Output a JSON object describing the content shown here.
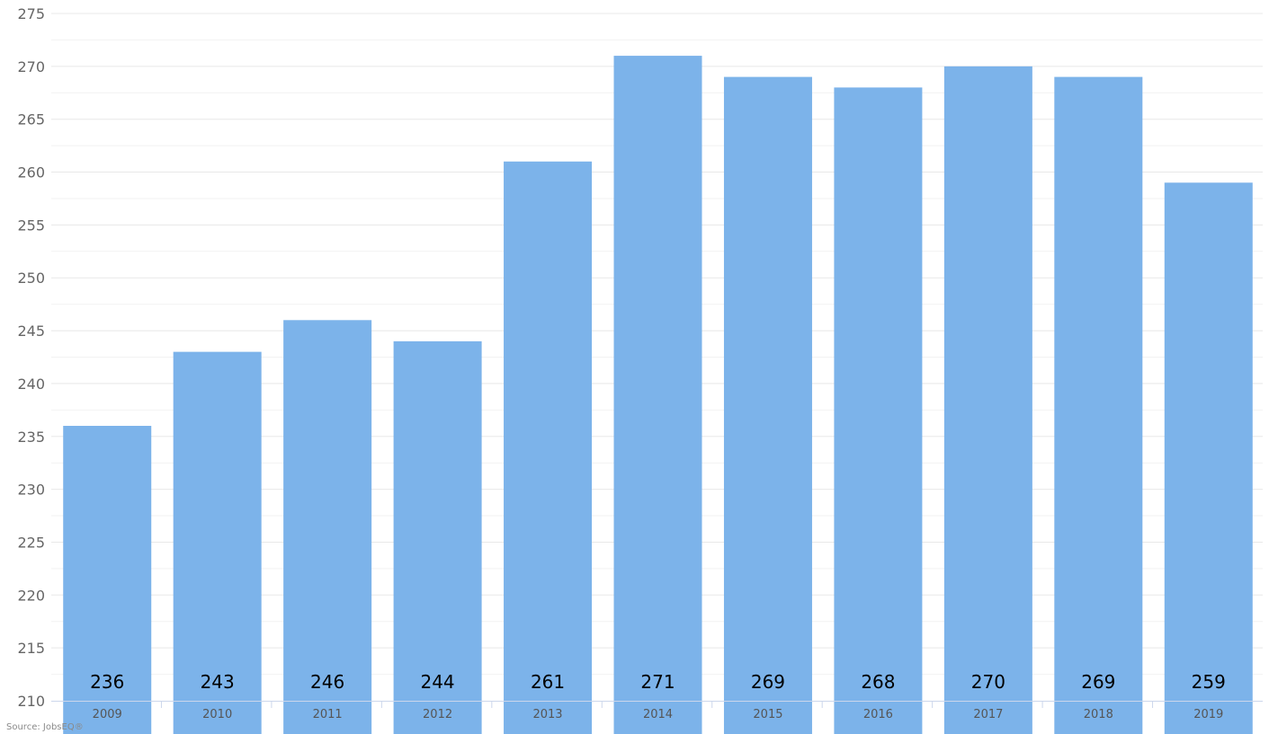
{
  "chart_data": {
    "type": "bar",
    "categories": [
      "2009",
      "2010",
      "2011",
      "2012",
      "2013",
      "2014",
      "2015",
      "2016",
      "2017",
      "2018",
      "2019"
    ],
    "values": [
      236,
      243,
      246,
      244,
      261,
      271,
      269,
      268,
      270,
      269,
      259
    ],
    "title": "",
    "xlabel": "",
    "ylabel": "",
    "ylim": [
      210,
      275
    ],
    "yticks": [
      210,
      215,
      220,
      225,
      230,
      235,
      240,
      245,
      250,
      255,
      260,
      265,
      270,
      275
    ],
    "grid": true,
    "bar_color": "#7cb3ea",
    "data_labels": true
  },
  "source": "Source: JobsEQ®"
}
